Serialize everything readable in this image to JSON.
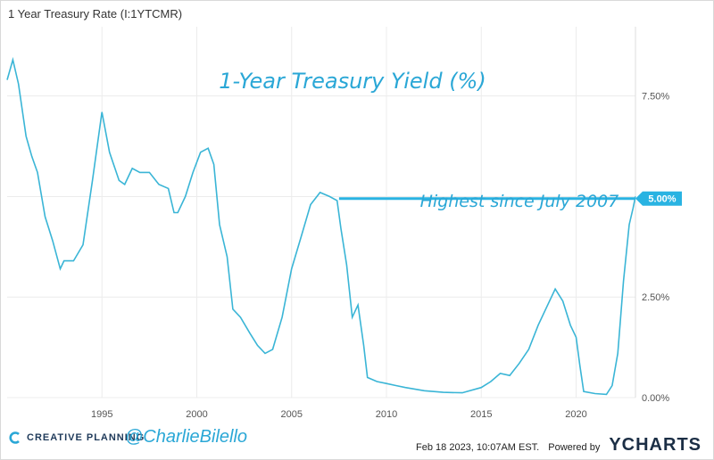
{
  "header": {
    "title": "1 Year Treasury Rate (I:1YTCMR)"
  },
  "footer": {
    "brand": "CREATIVE PLANNING",
    "handle": "@CharlieBilello",
    "timestamp": "Feb 18 2023, 10:07AM EST.",
    "powered_by": "Powered by",
    "provider": "YCHARTS"
  },
  "colors": {
    "line": "#3ab5d6",
    "annotation": "#2aa7d6",
    "badge": "#29b3e2",
    "axis_text": "#555555",
    "grid": "#ececec"
  },
  "chart_data": {
    "type": "line",
    "title": "1-Year Treasury Yield (%)",
    "annotation": "Highest since July 2007",
    "last_value_label": "5.00%",
    "xlim": [
      1990,
      2023.13
    ],
    "ylim": [
      0,
      9.0
    ],
    "x_ticks": [
      1995,
      2000,
      2005,
      2010,
      2015,
      2020
    ],
    "y_ticks": [
      0,
      2.5,
      5.0,
      7.5
    ],
    "y_tick_labels": [
      "0.00%",
      "2.50%",
      "5.00%",
      "7.50%"
    ],
    "reference_line": {
      "from": 2007.5,
      "to": 2023.13,
      "value": 4.95
    },
    "series": [
      {
        "x": [
          1990.0,
          1990.3,
          1990.6,
          1991.0,
          1991.3,
          1991.6,
          1992.0,
          1992.4,
          1992.8,
          1993.0,
          1993.5,
          1994.0,
          1994.5,
          1995.0,
          1995.4,
          1995.9,
          1996.2,
          1996.6,
          1997.0,
          1997.5,
          1998.0,
          1998.5,
          1998.8,
          1999.0,
          1999.4,
          1999.8,
          2000.2,
          2000.6,
          2000.9,
          2001.2,
          2001.6,
          2001.9,
          2002.3,
          2002.8,
          2003.2,
          2003.6,
          2004.0,
          2004.5,
          2005.0,
          2005.5,
          2006.0,
          2006.5,
          2007.0,
          2007.4,
          2007.6,
          2007.9,
          2008.2,
          2008.5,
          2008.8,
          2009.0,
          2009.5,
          2010.0,
          2010.5,
          2011.0,
          2012.0,
          2013.0,
          2014.0,
          2015.0,
          2015.5,
          2016.0,
          2016.5,
          2017.0,
          2017.5,
          2018.0,
          2018.5,
          2018.9,
          2019.3,
          2019.7,
          2020.0,
          2020.2,
          2020.4,
          2021.0,
          2021.6,
          2021.9,
          2022.2,
          2022.5,
          2022.8,
          2023.0,
          2023.13
        ],
        "y": [
          7.9,
          8.4,
          7.8,
          6.5,
          6.0,
          5.6,
          4.5,
          3.9,
          3.2,
          3.4,
          3.4,
          3.8,
          5.4,
          7.1,
          6.1,
          5.4,
          5.3,
          5.7,
          5.6,
          5.6,
          5.3,
          5.2,
          4.6,
          4.6,
          5.0,
          5.6,
          6.1,
          6.2,
          5.8,
          4.3,
          3.5,
          2.2,
          2.0,
          1.6,
          1.3,
          1.1,
          1.2,
          2.0,
          3.2,
          4.0,
          4.8,
          5.1,
          5.0,
          4.9,
          4.2,
          3.3,
          2.0,
          2.3,
          1.3,
          0.5,
          0.4,
          0.35,
          0.3,
          0.25,
          0.17,
          0.13,
          0.12,
          0.25,
          0.4,
          0.6,
          0.55,
          0.85,
          1.2,
          1.8,
          2.3,
          2.7,
          2.4,
          1.8,
          1.5,
          0.8,
          0.15,
          0.1,
          0.08,
          0.3,
          1.1,
          2.9,
          4.3,
          4.7,
          5.0
        ]
      }
    ]
  }
}
